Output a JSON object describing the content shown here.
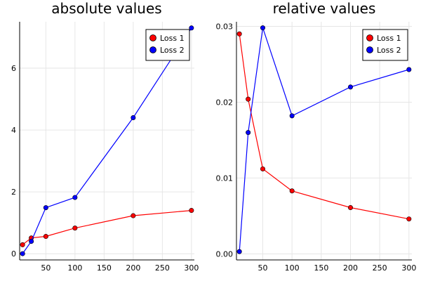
{
  "chart_data": [
    {
      "type": "line",
      "title": "absolute values",
      "xlabel": "",
      "ylabel": "",
      "x": [
        10,
        25,
        50,
        100,
        200,
        300
      ],
      "series": [
        {
          "name": "Loss 1",
          "color": "#ff0000",
          "values": [
            0.29,
            0.51,
            0.56,
            0.83,
            1.23,
            1.4
          ]
        },
        {
          "name": "Loss 2",
          "color": "#0000ff",
          "values": [
            0.003,
            0.4,
            1.49,
            1.82,
            4.4,
            7.3
          ]
        }
      ],
      "xlim": [
        5,
        305
      ],
      "ylim": [
        -0.2,
        7.5
      ],
      "xticks": [
        50,
        100,
        150,
        200,
        250,
        300
      ],
      "xtick_labels": [
        "50",
        "100",
        "150",
        "200",
        "250",
        "300"
      ],
      "yticks": [
        0,
        2,
        4,
        6
      ],
      "ytick_labels": [
        "0",
        "2",
        "4",
        "6"
      ],
      "grid": true,
      "legend": "top-right"
    },
    {
      "type": "line",
      "title": "relative values",
      "xlabel": "",
      "ylabel": "",
      "x": [
        10,
        25,
        50,
        100,
        200,
        300
      ],
      "series": [
        {
          "name": "Loss 1",
          "color": "#ff0000",
          "values": [
            0.029,
            0.0204,
            0.0112,
            0.0083,
            0.0061,
            0.0046
          ]
        },
        {
          "name": "Loss 2",
          "color": "#0000ff",
          "values": [
            0.0003,
            0.016,
            0.0298,
            0.0182,
            0.022,
            0.0243
          ]
        }
      ],
      "xlim": [
        5,
        305
      ],
      "ylim": [
        -0.0008,
        0.0306
      ],
      "xticks": [
        50,
        100,
        150,
        200,
        250,
        300
      ],
      "xtick_labels": [
        "50",
        "100",
        "150",
        "200",
        "250",
        "300"
      ],
      "yticks": [
        0.0,
        0.01,
        0.02,
        0.03
      ],
      "ytick_labels": [
        "0.00",
        "0.01",
        "0.02",
        "0.03"
      ],
      "grid": true,
      "legend": "top-right"
    }
  ]
}
